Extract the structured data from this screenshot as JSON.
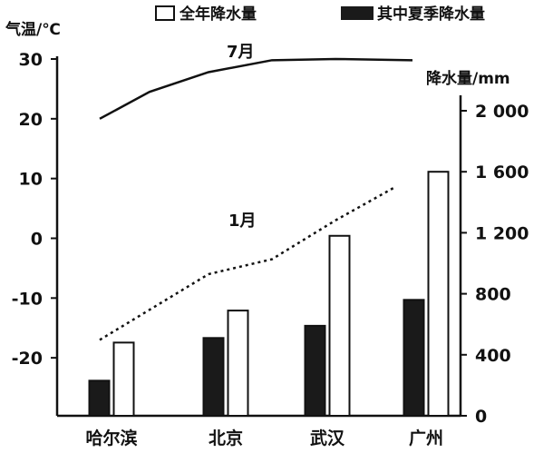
{
  "chart_data": {
    "type": "bar+line",
    "categories": [
      "哈尔滨",
      "北京",
      "武汉",
      "广州"
    ],
    "left_axis": {
      "label": "气温/℃",
      "ticks": [
        30,
        20,
        10,
        0,
        -10,
        -20
      ],
      "range": [
        -30,
        30
      ]
    },
    "right_axis": {
      "label": "降水量/mm",
      "tick_labels": [
        "2 000",
        "1 600",
        "1 200",
        "800",
        "400",
        "0"
      ],
      "ticks": [
        2000,
        1600,
        1200,
        800,
        400,
        0
      ],
      "range": [
        0,
        2000
      ]
    },
    "legend": {
      "annual": "全年降水量",
      "summer": "其中夏季降水量"
    },
    "bar_series": [
      {
        "key": "summer",
        "fill": "#1a1a1a",
        "values": [
          230,
          510,
          590,
          760
        ]
      },
      {
        "key": "annual",
        "fill": "#ffffff",
        "values": [
          480,
          690,
          1180,
          1600
        ]
      }
    ],
    "line_series": [
      {
        "label": "7月",
        "style": "solid",
        "x": [
          0,
          0.55,
          1.2,
          1.9,
          2.6,
          3.45
        ],
        "y": [
          20,
          24.5,
          27.8,
          29.8,
          30,
          29.8
        ]
      },
      {
        "label": "1月",
        "style": "dotted",
        "x": [
          0,
          0.6,
          1.2,
          1.9,
          2.6,
          3.25
        ],
        "y": [
          -17,
          -11.5,
          -6,
          -3.5,
          3,
          8.5
        ]
      }
    ]
  }
}
